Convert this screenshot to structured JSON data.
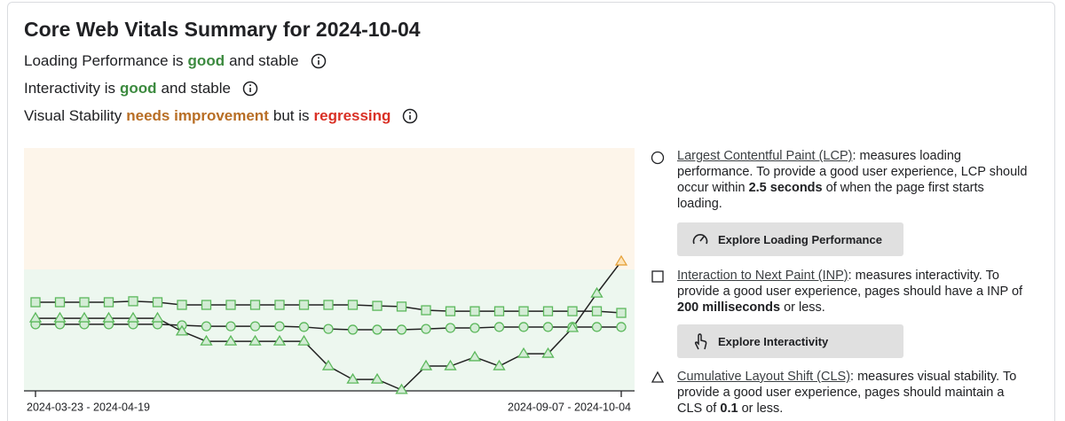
{
  "header": {
    "title": "Core Web Vitals Summary for 2024-10-04",
    "status_lines": [
      [
        "Loading Performance is",
        "good",
        "and stable"
      ],
      [
        "Interactivity is",
        "good",
        "and stable"
      ],
      [
        "Visual Stability",
        "needs improvement",
        "but is",
        "regressing"
      ]
    ]
  },
  "chart_data": {
    "type": "line",
    "categories": [
      "2024-03-23 - 2024-04-19",
      null,
      null,
      null,
      null,
      null,
      null,
      null,
      null,
      null,
      null,
      null,
      null,
      null,
      null,
      null,
      null,
      null,
      null,
      null,
      null,
      null,
      null,
      null,
      "2024-09-07 - 2024-10-04"
    ],
    "ylim": [
      0,
      100
    ],
    "zones": [
      {
        "from": 50,
        "to": 100,
        "color": "#fdf5ea",
        "marker_color": "#e6a23c",
        "marker_fill": "#fde3b8"
      },
      {
        "from": 0,
        "to": 50,
        "color": "#edf7ef",
        "marker_color": "#5cb85c",
        "marker_fill": "#d3ecd5"
      }
    ],
    "series": [
      {
        "name": "Largest Contentful Paint (LCP)",
        "marker": "square",
        "color": "#222222",
        "values": [
          36.5,
          36.5,
          36.5,
          36.5,
          36.9,
          36.5,
          35.4,
          35.4,
          35.4,
          35.4,
          35.4,
          35.4,
          35.4,
          35.4,
          35.0,
          34.7,
          33.2,
          32.8,
          32.8,
          32.8,
          32.8,
          32.8,
          32.8,
          32.8,
          32.1
        ]
      },
      {
        "name": "Interaction to Next Paint (INP)",
        "marker": "circle",
        "color": "#222222",
        "values": [
          27.4,
          27.4,
          27.4,
          27.4,
          27.4,
          27.4,
          27.0,
          26.6,
          26.6,
          26.6,
          26.6,
          26.3,
          25.5,
          25.2,
          25.2,
          25.2,
          25.5,
          25.9,
          25.9,
          26.3,
          26.3,
          26.3,
          26.3,
          26.3,
          26.3
        ]
      },
      {
        "name": "Cumulative Layout Shift (CLS)",
        "marker": "triangle",
        "color": "#222222",
        "values": [
          29.9,
          29.9,
          29.9,
          29.9,
          29.9,
          29.9,
          24.5,
          20.4,
          20.4,
          20.4,
          20.4,
          20.4,
          10.2,
          4.7,
          4.7,
          0.4,
          10.2,
          10.2,
          13.9,
          10.2,
          15.3,
          15.3,
          25.9,
          40.1,
          53.3
        ]
      }
    ]
  },
  "metric_notes": [
    [
      ": measures loading performance. To provide a good user experience, LCP should occur within",
      "2.5 seconds",
      "of when the page first starts loading."
    ],
    [
      ": measures interactivity. To provide a good user experience, pages should have a INP of",
      "200 milliseconds",
      "or less."
    ],
    [
      ": measures visual stability. To provide a good user experience, pages should maintain a CLS of",
      "0.1",
      "or less."
    ]
  ],
  "buttons": [
    "Explore Loading Performance",
    "Explore Interactivity"
  ]
}
